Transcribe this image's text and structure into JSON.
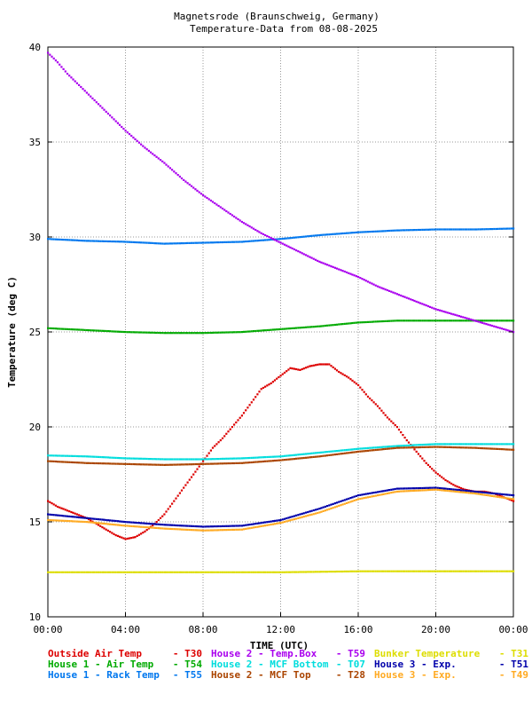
{
  "chart_data": {
    "type": "scatter",
    "title": [
      "Magnetsrode (Braunschweig, Germany)",
      "Temperature-Data from 08-08-2025"
    ],
    "xlabel": "TIME (UTC)",
    "ylabel": "Temperature (deg C)",
    "xlim": [
      0,
      24
    ],
    "ylim": [
      10,
      40
    ],
    "xticks": [
      {
        "v": 0,
        "label": "00:00"
      },
      {
        "v": 4,
        "label": "04:00"
      },
      {
        "v": 8,
        "label": "08:00"
      },
      {
        "v": 12,
        "label": "12:00"
      },
      {
        "v": 16,
        "label": "16:00"
      },
      {
        "v": 20,
        "label": "20:00"
      },
      {
        "v": 24,
        "label": "00:00"
      }
    ],
    "yticks": [
      {
        "v": 10,
        "label": "10"
      },
      {
        "v": 15,
        "label": "15"
      },
      {
        "v": 20,
        "label": "20"
      },
      {
        "v": 25,
        "label": "25"
      },
      {
        "v": 30,
        "label": "30"
      },
      {
        "v": 35,
        "label": "35"
      },
      {
        "v": 40,
        "label": "40"
      }
    ],
    "grid": true,
    "legend_position": "bottom",
    "series": [
      {
        "name": "Outside Air Temp",
        "code": "- T30",
        "color": "#dd0000",
        "points": [
          [
            0,
            16.1
          ],
          [
            0.5,
            15.8
          ],
          [
            1,
            15.6
          ],
          [
            1.5,
            15.4
          ],
          [
            2,
            15.2
          ],
          [
            2.5,
            14.9
          ],
          [
            3,
            14.6
          ],
          [
            3.5,
            14.3
          ],
          [
            4,
            14.1
          ],
          [
            4.5,
            14.2
          ],
          [
            5,
            14.5
          ],
          [
            5.5,
            14.9
          ],
          [
            6,
            15.4
          ],
          [
            6.5,
            16.1
          ],
          [
            7,
            16.8
          ],
          [
            7.5,
            17.5
          ],
          [
            8,
            18.2
          ],
          [
            8.5,
            18.9
          ],
          [
            9,
            19.4
          ],
          [
            9.5,
            20.0
          ],
          [
            10,
            20.6
          ],
          [
            10.5,
            21.3
          ],
          [
            11,
            22.0
          ],
          [
            11.5,
            22.3
          ],
          [
            12,
            22.7
          ],
          [
            12.5,
            23.1
          ],
          [
            13,
            23.0
          ],
          [
            13.5,
            23.2
          ],
          [
            14,
            23.3
          ],
          [
            14.5,
            23.3
          ],
          [
            15,
            22.9
          ],
          [
            15.5,
            22.6
          ],
          [
            16,
            22.2
          ],
          [
            16.5,
            21.6
          ],
          [
            17,
            21.1
          ],
          [
            17.5,
            20.5
          ],
          [
            18,
            20.0
          ],
          [
            18.5,
            19.3
          ],
          [
            19,
            18.7
          ],
          [
            19.5,
            18.1
          ],
          [
            20,
            17.6
          ],
          [
            20.5,
            17.2
          ],
          [
            21,
            16.9
          ],
          [
            21.5,
            16.7
          ],
          [
            22,
            16.6
          ],
          [
            22.5,
            16.6
          ],
          [
            23,
            16.5
          ],
          [
            23.5,
            16.3
          ],
          [
            24,
            16.1
          ]
        ]
      },
      {
        "name": "House 1 - Air  Temp",
        "code": "- T54",
        "color": "#00aa00",
        "points": [
          [
            0,
            25.2
          ],
          [
            2,
            25.1
          ],
          [
            4,
            25.0
          ],
          [
            6,
            24.95
          ],
          [
            8,
            24.95
          ],
          [
            10,
            25.0
          ],
          [
            12,
            25.15
          ],
          [
            14,
            25.3
          ],
          [
            16,
            25.5
          ],
          [
            18,
            25.6
          ],
          [
            20,
            25.6
          ],
          [
            22,
            25.6
          ],
          [
            24,
            25.6
          ]
        ]
      },
      {
        "name": "House 1 - Rack Temp",
        "code": "- T55",
        "color": "#0077ee",
        "points": [
          [
            0,
            29.9
          ],
          [
            2,
            29.8
          ],
          [
            4,
            29.75
          ],
          [
            6,
            29.65
          ],
          [
            8,
            29.7
          ],
          [
            10,
            29.75
          ],
          [
            12,
            29.9
          ],
          [
            14,
            30.1
          ],
          [
            16,
            30.25
          ],
          [
            18,
            30.35
          ],
          [
            20,
            30.4
          ],
          [
            22,
            30.4
          ],
          [
            24,
            30.45
          ]
        ]
      },
      {
        "name": "House 2 - Temp.Box",
        "code": "- T59",
        "color": "#aa00ee",
        "points": [
          [
            0,
            39.7
          ],
          [
            0.5,
            39.2
          ],
          [
            1,
            38.6
          ],
          [
            2,
            37.6
          ],
          [
            3,
            36.6
          ],
          [
            4,
            35.6
          ],
          [
            5,
            34.7
          ],
          [
            6,
            33.9
          ],
          [
            7,
            33.0
          ],
          [
            8,
            32.2
          ],
          [
            9,
            31.5
          ],
          [
            10,
            30.8
          ],
          [
            11,
            30.2
          ],
          [
            12,
            29.7
          ],
          [
            13,
            29.2
          ],
          [
            14,
            28.7
          ],
          [
            15,
            28.3
          ],
          [
            16,
            27.9
          ],
          [
            17,
            27.4
          ],
          [
            18,
            27.0
          ],
          [
            19,
            26.6
          ],
          [
            20,
            26.2
          ],
          [
            21,
            25.9
          ],
          [
            22,
            25.6
          ],
          [
            23,
            25.3
          ],
          [
            24,
            25.0
          ]
        ]
      },
      {
        "name": "House 2 - MCF Bottom",
        "code": "- T07",
        "color": "#00dddd",
        "points": [
          [
            0,
            18.5
          ],
          [
            2,
            18.45
          ],
          [
            4,
            18.35
          ],
          [
            6,
            18.3
          ],
          [
            8,
            18.3
          ],
          [
            10,
            18.35
          ],
          [
            12,
            18.45
          ],
          [
            14,
            18.65
          ],
          [
            16,
            18.85
          ],
          [
            18,
            19.0
          ],
          [
            20,
            19.1
          ],
          [
            22,
            19.1
          ],
          [
            24,
            19.1
          ]
        ]
      },
      {
        "name": "House 2 - MCF Top",
        "code": "- T28",
        "color": "#aa4400",
        "points": [
          [
            0,
            18.2
          ],
          [
            2,
            18.1
          ],
          [
            4,
            18.05
          ],
          [
            6,
            18.0
          ],
          [
            8,
            18.05
          ],
          [
            10,
            18.1
          ],
          [
            12,
            18.25
          ],
          [
            14,
            18.45
          ],
          [
            16,
            18.7
          ],
          [
            18,
            18.9
          ],
          [
            20,
            18.95
          ],
          [
            22,
            18.9
          ],
          [
            24,
            18.8
          ]
        ]
      },
      {
        "name": "Bunker Temperature",
        "code": "- T31",
        "color": "#dddd00",
        "points": [
          [
            0,
            12.35
          ],
          [
            4,
            12.35
          ],
          [
            8,
            12.35
          ],
          [
            12,
            12.35
          ],
          [
            16,
            12.4
          ],
          [
            20,
            12.4
          ],
          [
            24,
            12.4
          ]
        ]
      },
      {
        "name": "House 3 - Exp.",
        "code": "- T51",
        "color": "#0000aa",
        "points": [
          [
            0,
            15.4
          ],
          [
            2,
            15.2
          ],
          [
            4,
            15.0
          ],
          [
            6,
            14.85
          ],
          [
            8,
            14.75
          ],
          [
            10,
            14.8
          ],
          [
            12,
            15.1
          ],
          [
            14,
            15.7
          ],
          [
            16,
            16.4
          ],
          [
            18,
            16.75
          ],
          [
            20,
            16.8
          ],
          [
            22,
            16.6
          ],
          [
            24,
            16.4
          ]
        ]
      },
      {
        "name": "House 3 - Exp.",
        "code": "- T49",
        "color": "#ffaa22",
        "points": [
          [
            0,
            15.1
          ],
          [
            2,
            15.0
          ],
          [
            4,
            14.8
          ],
          [
            6,
            14.65
          ],
          [
            8,
            14.55
          ],
          [
            10,
            14.6
          ],
          [
            12,
            14.95
          ],
          [
            14,
            15.5
          ],
          [
            16,
            16.2
          ],
          [
            18,
            16.6
          ],
          [
            20,
            16.7
          ],
          [
            22,
            16.5
          ],
          [
            24,
            16.2
          ]
        ]
      }
    ]
  }
}
